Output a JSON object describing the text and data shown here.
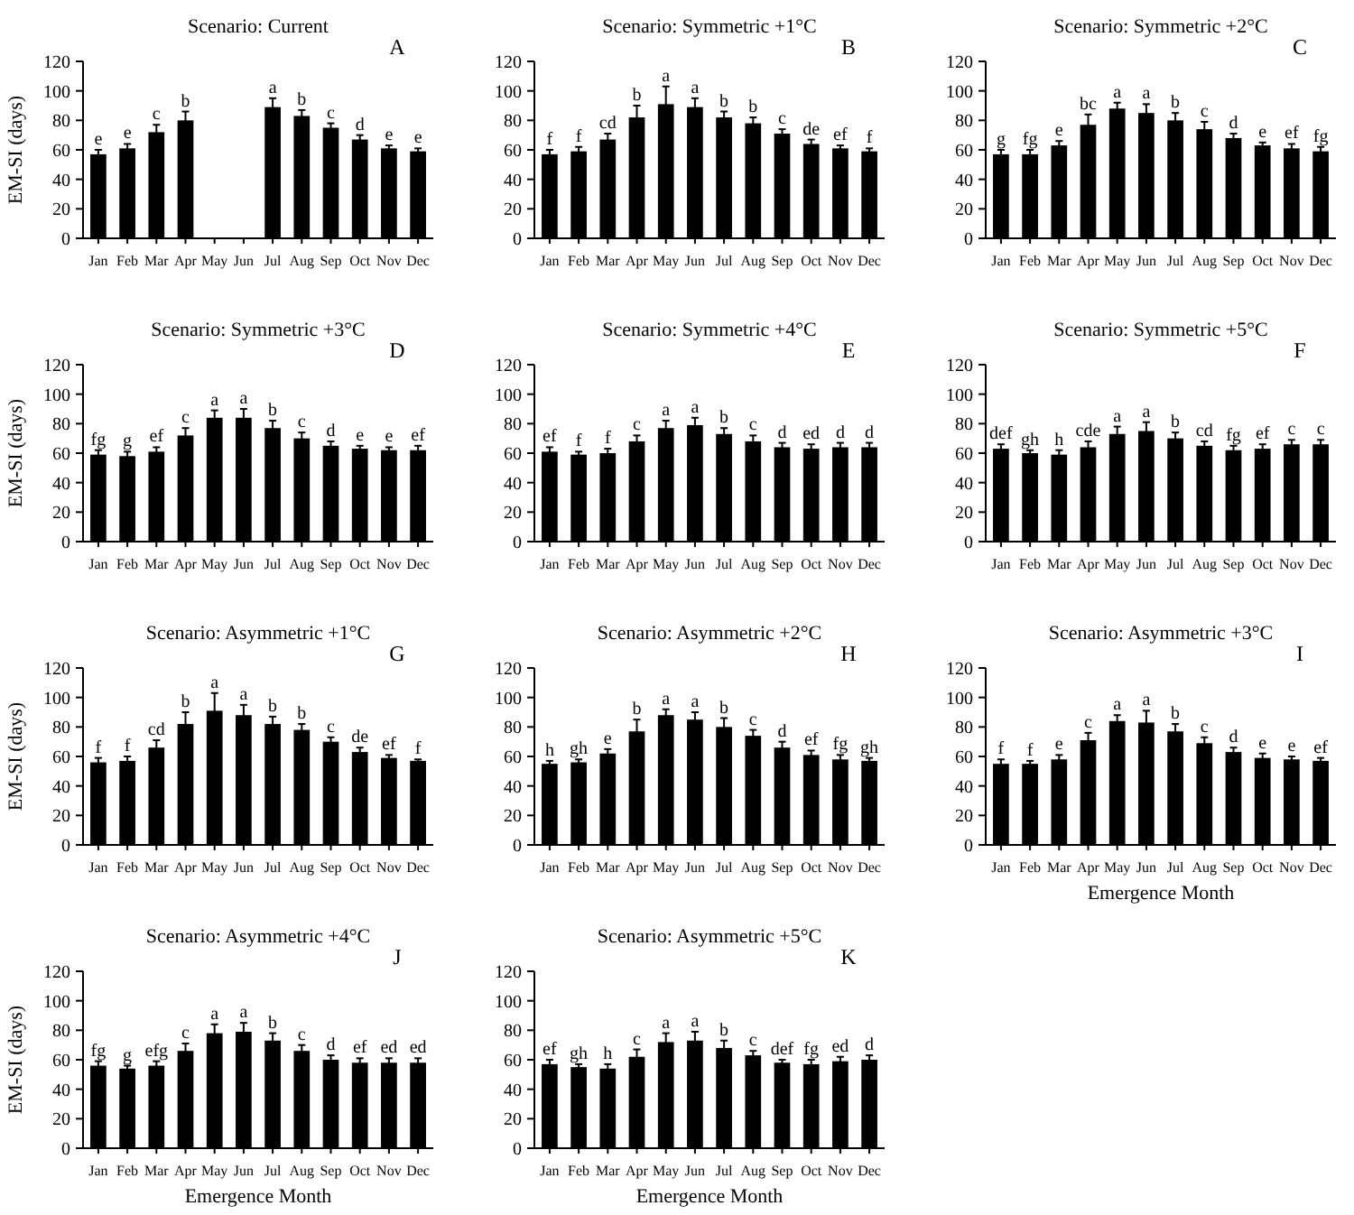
{
  "chart_data": [
    {
      "type": "bar",
      "title": "Scenario: Current",
      "ylabel": "EM-SI (days)",
      "annotations": [
        "A"
      ],
      "categories": [
        "Jan",
        "Feb",
        "Mar",
        "Apr",
        "May",
        "Jun",
        "Jul",
        "Aug",
        "Sep",
        "Oct",
        "Nov",
        "Dec"
      ],
      "color": "#000000",
      "values": [
        57,
        61,
        72,
        80,
        null,
        null,
        89,
        83,
        75,
        67,
        61,
        59
      ],
      "errors": [
        3,
        3,
        5,
        6,
        null,
        null,
        6,
        4,
        3,
        3,
        2,
        2
      ],
      "value_labels": [
        "e",
        "e",
        "c",
        "b",
        null,
        null,
        "a",
        "b",
        "c",
        "d",
        "e",
        "e"
      ],
      "ylim": [
        0,
        120
      ],
      "yticks": [
        0,
        20,
        40,
        60,
        80,
        100,
        120
      ]
    },
    {
      "type": "bar",
      "title": "Scenario: Symmetric +1°C",
      "annotations": [
        "B"
      ],
      "categories": [
        "Jan",
        "Feb",
        "Mar",
        "Apr",
        "May",
        "Jun",
        "Jul",
        "Aug",
        "Sep",
        "Oct",
        "Nov",
        "Dec"
      ],
      "color": "#000000",
      "values": [
        57,
        59,
        67,
        82,
        91,
        89,
        82,
        78,
        71,
        64,
        61,
        59
      ],
      "errors": [
        3,
        3,
        4,
        8,
        12,
        6,
        4,
        4,
        3,
        3,
        2,
        2
      ],
      "value_labels": [
        "f",
        "f",
        "cd",
        "b",
        "a",
        "a",
        "b",
        "b",
        "c",
        "de",
        "ef",
        "f"
      ],
      "ylim": [
        0,
        120
      ],
      "yticks": [
        0,
        20,
        40,
        60,
        80,
        100,
        120
      ]
    },
    {
      "type": "bar",
      "title": "Scenario: Symmetric +2°C",
      "annotations": [
        "C"
      ],
      "categories": [
        "Jan",
        "Feb",
        "Mar",
        "Apr",
        "May",
        "Jun",
        "Jul",
        "Aug",
        "Sep",
        "Oct",
        "Nov",
        "Dec"
      ],
      "color": "#000000",
      "values": [
        57,
        57,
        63,
        77,
        88,
        85,
        80,
        74,
        68,
        63,
        61,
        59
      ],
      "errors": [
        3,
        3,
        3,
        7,
        4,
        6,
        5,
        5,
        3,
        2,
        3,
        3
      ],
      "value_labels": [
        "g",
        "fg",
        "e",
        "bc",
        "a",
        "a",
        "b",
        "c",
        "d",
        "e",
        "ef",
        "fg"
      ],
      "ylim": [
        0,
        120
      ],
      "yticks": [
        0,
        20,
        40,
        60,
        80,
        100,
        120
      ]
    },
    {
      "type": "bar",
      "title": "Scenario: Symmetric +3°C",
      "ylabel": "EM-SI (days)",
      "annotations": [
        "D"
      ],
      "categories": [
        "Jan",
        "Feb",
        "Mar",
        "Apr",
        "May",
        "Jun",
        "Jul",
        "Aug",
        "Sep",
        "Oct",
        "Nov",
        "Dec"
      ],
      "color": "#000000",
      "values": [
        59,
        58,
        61,
        72,
        84,
        84,
        77,
        70,
        65,
        63,
        62,
        62
      ],
      "errors": [
        3,
        3,
        3,
        5,
        5,
        6,
        5,
        4,
        3,
        2,
        2,
        3
      ],
      "value_labels": [
        "fg",
        "g",
        "ef",
        "c",
        "a",
        "a",
        "b",
        "c",
        "d",
        "e",
        "e",
        "ef"
      ],
      "ylim": [
        0,
        120
      ],
      "yticks": [
        0,
        20,
        40,
        60,
        80,
        100,
        120
      ]
    },
    {
      "type": "bar",
      "title": "Scenario: Symmetric +4°C",
      "annotations": [
        "E"
      ],
      "categories": [
        "Jan",
        "Feb",
        "Mar",
        "Apr",
        "May",
        "Jun",
        "Jul",
        "Aug",
        "Sep",
        "Oct",
        "Nov",
        "Dec"
      ],
      "color": "#000000",
      "values": [
        61,
        59,
        60,
        68,
        77,
        79,
        73,
        68,
        64,
        63,
        64,
        64
      ],
      "errors": [
        3,
        2,
        3,
        4,
        5,
        5,
        4,
        4,
        3,
        3,
        3,
        3
      ],
      "value_labels": [
        "ef",
        "f",
        "f",
        "c",
        "a",
        "a",
        "b",
        "c",
        "d",
        "ed",
        "d",
        "d"
      ],
      "ylim": [
        0,
        120
      ],
      "yticks": [
        0,
        20,
        40,
        60,
        80,
        100,
        120
      ]
    },
    {
      "type": "bar",
      "title": "Scenario: Symmetric +5°C",
      "annotations": [
        "F"
      ],
      "categories": [
        "Jan",
        "Feb",
        "Mar",
        "Apr",
        "May",
        "Jun",
        "Jul",
        "Aug",
        "Sep",
        "Oct",
        "Nov",
        "Dec"
      ],
      "color": "#000000",
      "values": [
        63,
        60,
        59,
        64,
        73,
        75,
        70,
        65,
        62,
        63,
        66,
        66
      ],
      "errors": [
        3,
        2,
        3,
        4,
        5,
        6,
        4,
        3,
        3,
        3,
        3,
        3
      ],
      "value_labels": [
        "def",
        "gh",
        "h",
        "cde",
        "a",
        "a",
        "b",
        "cd",
        "fg",
        "ef",
        "c",
        "c"
      ],
      "ylim": [
        0,
        120
      ],
      "yticks": [
        0,
        20,
        40,
        60,
        80,
        100,
        120
      ]
    },
    {
      "type": "bar",
      "title": "Scenario: Asymmetric +1°C",
      "ylabel": "EM-SI (days)",
      "annotations": [
        "G"
      ],
      "categories": [
        "Jan",
        "Feb",
        "Mar",
        "Apr",
        "May",
        "Jun",
        "Jul",
        "Aug",
        "Sep",
        "Oct",
        "Nov",
        "Dec"
      ],
      "color": "#000000",
      "values": [
        56,
        57,
        66,
        82,
        91,
        88,
        82,
        78,
        70,
        63,
        59,
        57
      ],
      "errors": [
        3,
        3,
        5,
        8,
        12,
        7,
        5,
        4,
        3,
        3,
        2,
        1
      ],
      "value_labels": [
        "f",
        "f",
        "cd",
        "b",
        "a",
        "a",
        "b",
        "b",
        "c",
        "de",
        "ef",
        "f"
      ],
      "ylim": [
        0,
        120
      ],
      "yticks": [
        0,
        20,
        40,
        60,
        80,
        100,
        120
      ]
    },
    {
      "type": "bar",
      "title": "Scenario: Asymmetric +2°C",
      "annotations": [
        "H"
      ],
      "categories": [
        "Jan",
        "Feb",
        "Mar",
        "Apr",
        "May",
        "Jun",
        "Jul",
        "Aug",
        "Sep",
        "Oct",
        "Nov",
        "Dec"
      ],
      "color": "#000000",
      "values": [
        55,
        56,
        62,
        77,
        88,
        85,
        80,
        74,
        66,
        61,
        58,
        57
      ],
      "errors": [
        2,
        2,
        3,
        8,
        4,
        5,
        6,
        4,
        4,
        3,
        3,
        2
      ],
      "value_labels": [
        "h",
        "gh",
        "e",
        "b",
        "a",
        "a",
        "b",
        "c",
        "d",
        "ef",
        "fg",
        "gh"
      ],
      "ylim": [
        0,
        120
      ],
      "yticks": [
        0,
        20,
        40,
        60,
        80,
        100,
        120
      ]
    },
    {
      "type": "bar",
      "title": "Scenario: Asymmetric +3°C",
      "xlabel": "Emergence Month",
      "annotations": [
        "I"
      ],
      "categories": [
        "Jan",
        "Feb",
        "Mar",
        "Apr",
        "May",
        "Jun",
        "Jul",
        "Aug",
        "Sep",
        "Oct",
        "Nov",
        "Dec"
      ],
      "color": "#000000",
      "values": [
        55,
        55,
        58,
        71,
        84,
        83,
        77,
        69,
        63,
        59,
        58,
        57
      ],
      "errors": [
        3,
        2,
        3,
        5,
        4,
        8,
        5,
        4,
        3,
        3,
        2,
        2
      ],
      "value_labels": [
        "f",
        "f",
        "e",
        "c",
        "a",
        "a",
        "b",
        "c",
        "d",
        "e",
        "e",
        "ef"
      ],
      "ylim": [
        0,
        120
      ],
      "yticks": [
        0,
        20,
        40,
        60,
        80,
        100,
        120
      ]
    },
    {
      "type": "bar",
      "title": "Scenario: Asymmetric +4°C",
      "ylabel": "EM-SI (days)",
      "xlabel": "Emergence Month",
      "annotations": [
        "J"
      ],
      "categories": [
        "Jan",
        "Feb",
        "Mar",
        "Apr",
        "May",
        "Jun",
        "Jul",
        "Aug",
        "Sep",
        "Oct",
        "Nov",
        "Dec"
      ],
      "color": "#000000",
      "values": [
        56,
        54,
        56,
        66,
        78,
        79,
        73,
        66,
        60,
        58,
        58,
        58
      ],
      "errors": [
        3,
        2,
        3,
        5,
        6,
        6,
        5,
        4,
        3,
        3,
        3,
        3
      ],
      "value_labels": [
        "fg",
        "g",
        "efg",
        "c",
        "a",
        "a",
        "b",
        "c",
        "d",
        "ef",
        "ed",
        "ed"
      ],
      "ylim": [
        0,
        120
      ],
      "yticks": [
        0,
        20,
        40,
        60,
        80,
        100,
        120
      ]
    },
    {
      "type": "bar",
      "title": "Scenario: Asymmetric +5°C",
      "xlabel": "Emergence Month",
      "annotations": [
        "K"
      ],
      "categories": [
        "Jan",
        "Feb",
        "Mar",
        "Apr",
        "May",
        "Jun",
        "Jul",
        "Aug",
        "Sep",
        "Oct",
        "Nov",
        "Dec"
      ],
      "color": "#000000",
      "values": [
        57,
        55,
        54,
        62,
        72,
        73,
        68,
        63,
        58,
        57,
        59,
        60
      ],
      "errors": [
        3,
        2,
        3,
        5,
        6,
        6,
        5,
        3,
        2,
        3,
        3,
        3
      ],
      "value_labels": [
        "ef",
        "gh",
        "h",
        "c",
        "a",
        "a",
        "b",
        "c",
        "def",
        "fg",
        "ed",
        "d"
      ],
      "ylim": [
        0,
        120
      ],
      "yticks": [
        0,
        20,
        40,
        60,
        80,
        100,
        120
      ]
    }
  ]
}
